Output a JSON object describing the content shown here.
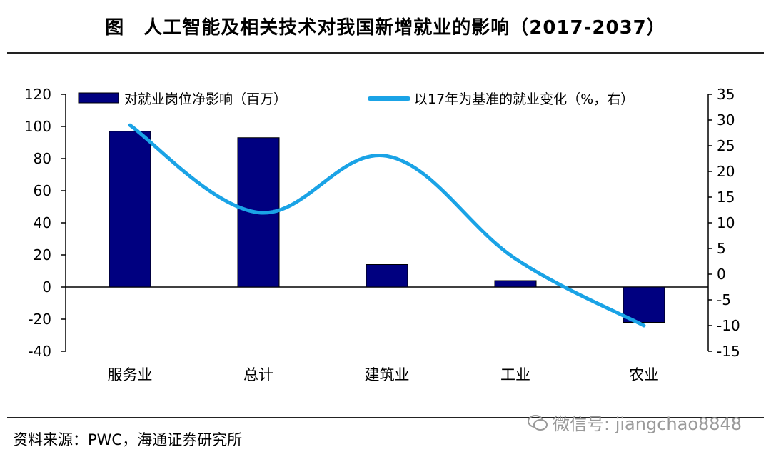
{
  "title": "图　人工智能及相关技术对我国新增就业的影响（2017-2037）",
  "source": "资料来源：PWC，海通证券研究所",
  "watermark": "微信号: jiangchao8848",
  "colors": {
    "bar": "#000080",
    "line": "#1aa3e6",
    "axis": "#000000"
  },
  "chart_data": {
    "type": "bar",
    "categories": [
      "服务业",
      "总计",
      "建筑业",
      "工业",
      "农业"
    ],
    "series": [
      {
        "name": "对就业岗位净影响（百万）",
        "type": "bar",
        "axis": "left",
        "values": [
          97,
          93,
          14,
          4,
          -22
        ]
      },
      {
        "name": "以17年为基准的就业变化（%，右）",
        "type": "line",
        "axis": "right",
        "values": [
          29,
          12,
          23,
          3,
          -10
        ]
      }
    ],
    "y_left": {
      "min": -40,
      "max": 120,
      "step": 20,
      "ticks": [
        "120",
        "100",
        "80",
        "60",
        "40",
        "20",
        "0",
        "-20",
        "-40"
      ]
    },
    "y_right": {
      "min": -15,
      "max": 35,
      "step": 5,
      "ticks": [
        "35",
        "30",
        "25",
        "20",
        "15",
        "10",
        "5",
        "0",
        "-5",
        "-10",
        "-15"
      ]
    },
    "legend": "top",
    "grid": false
  }
}
